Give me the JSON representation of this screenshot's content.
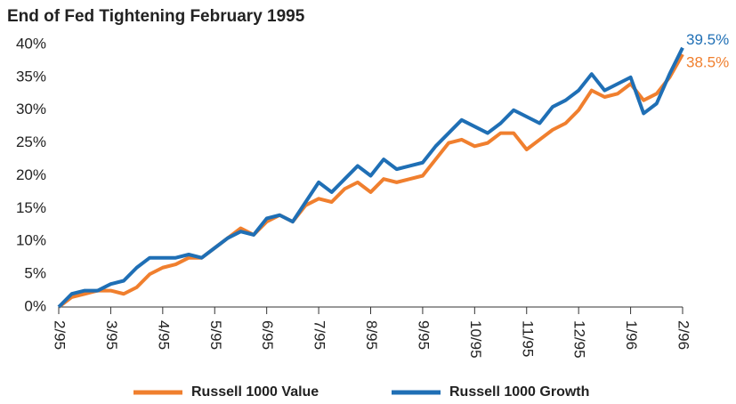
{
  "chart_data": {
    "type": "line",
    "title": "End of Fed Tightening February 1995",
    "categories": [
      "2/95",
      null,
      null,
      null,
      "3/95",
      null,
      null,
      null,
      "4/95",
      null,
      null,
      null,
      "5/95",
      null,
      null,
      null,
      "6/95",
      null,
      null,
      null,
      "7/95",
      null,
      null,
      null,
      "8/95",
      null,
      null,
      null,
      "9/95",
      null,
      null,
      null,
      "10/95",
      null,
      null,
      null,
      "11/95",
      null,
      null,
      null,
      "12/95",
      null,
      null,
      null,
      "1/96",
      null,
      null,
      null,
      "2/96"
    ],
    "series": [
      {
        "name": "Russell 1000 Value",
        "color": "#f07f2e",
        "end_label": "38.5%",
        "values": [
          0,
          1.5,
          2,
          2.5,
          2.5,
          2,
          3,
          5,
          6,
          6.5,
          7.5,
          7.5,
          9,
          10.5,
          12,
          11,
          13,
          14,
          13,
          15.5,
          16.5,
          16,
          18,
          19,
          17.5,
          19.5,
          19,
          19.5,
          20,
          22.5,
          25,
          25.5,
          24.5,
          25,
          26.5,
          26.5,
          24,
          25.5,
          27,
          28,
          30,
          33,
          32,
          32.5,
          34,
          31.5,
          32.5,
          35,
          38.5
        ]
      },
      {
        "name": "Russell 1000 Growth",
        "color": "#1f6fb5",
        "end_label": "39.5%",
        "values": [
          0,
          2,
          2.5,
          2.5,
          3.5,
          4,
          6,
          7.5,
          7.5,
          7.5,
          8,
          7.5,
          9,
          10.5,
          11.5,
          11,
          13.5,
          14,
          13,
          16,
          19,
          17.5,
          19.5,
          21.5,
          20,
          22.5,
          21,
          21.5,
          22,
          24.5,
          26.5,
          28.5,
          27.5,
          26.5,
          28,
          30,
          29,
          28,
          30.5,
          31.5,
          33,
          35.5,
          33,
          34,
          35,
          29.5,
          31,
          35.5,
          39.5
        ]
      }
    ],
    "ylim": [
      0,
      40
    ],
    "yticks": [
      {
        "value": 0,
        "label": "0%"
      },
      {
        "value": 5,
        "label": "5%"
      },
      {
        "value": 10,
        "label": "10%"
      },
      {
        "value": 15,
        "label": "15%"
      },
      {
        "value": 20,
        "label": "20%"
      },
      {
        "value": 25,
        "label": "25%"
      },
      {
        "value": 30,
        "label": "30%"
      },
      {
        "value": 35,
        "label": "35%"
      },
      {
        "value": 40,
        "label": "40%"
      }
    ],
    "grid": false,
    "legend": "bottom"
  }
}
